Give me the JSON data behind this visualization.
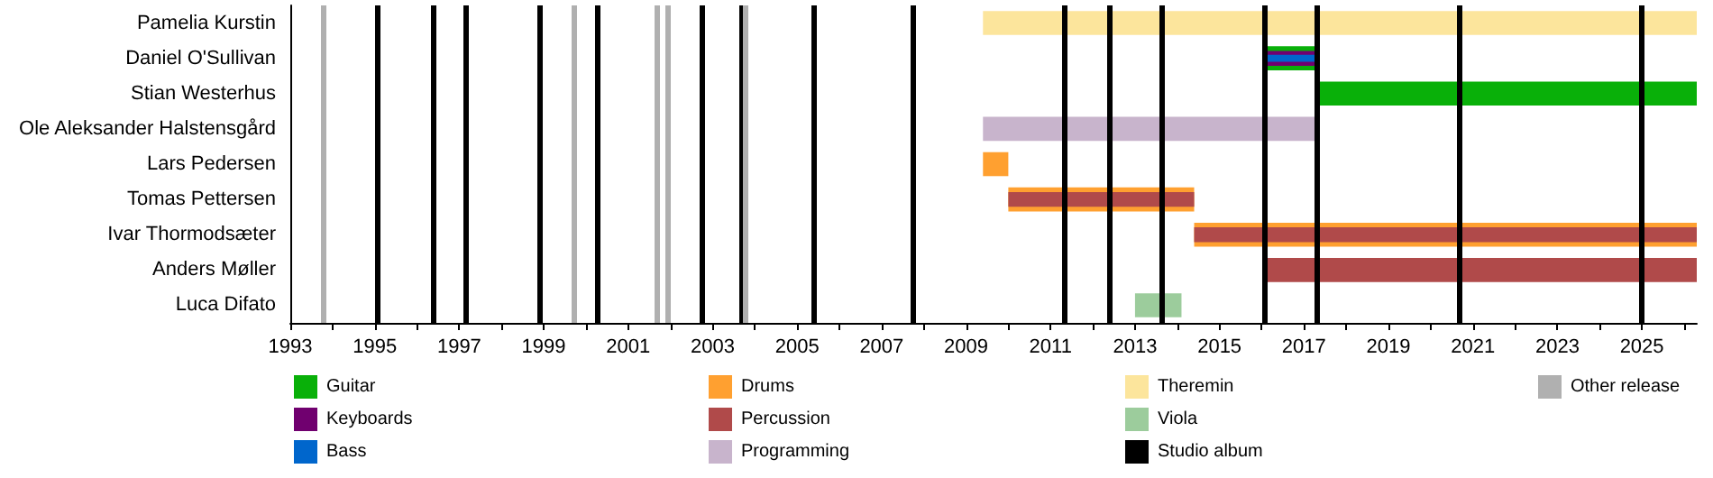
{
  "chart_data": {
    "type": "bar",
    "orientation": "horizontal",
    "legend": "bottom",
    "grid": false,
    "categories": [
      "Pamelia Kurstin",
      "Daniel O'Sullivan",
      "Stian Westerhus",
      "Ole Aleksander Halstensgård",
      "Lars Pedersen",
      "Tomas Pettersen",
      "Ivar Thormodsæter",
      "Anders Møller",
      "Luca Difato"
    ],
    "xlim": [
      1993,
      2026.3
    ],
    "xticks": [
      1993,
      {
        "value": 1994,
        "label": null
      },
      1995,
      {
        "value": 1996,
        "label": null
      },
      1997,
      {
        "value": 1998,
        "label": null
      },
      1999,
      {
        "value": 2000,
        "label": null
      },
      2001,
      {
        "value": 2002,
        "label": null
      },
      2003,
      {
        "value": 2004,
        "label": null
      },
      2005,
      {
        "value": 2006,
        "label": null
      },
      2007,
      {
        "value": 2008,
        "label": null
      },
      2009,
      {
        "value": 2010,
        "label": null
      },
      2011,
      {
        "value": 2012,
        "label": null
      },
      2013,
      {
        "value": 2014,
        "label": null
      },
      2015,
      {
        "value": 2016,
        "label": null
      },
      2017,
      {
        "value": 2018,
        "label": null
      },
      2019,
      {
        "value": 2020,
        "label": null
      },
      2021,
      {
        "value": 2022,
        "label": null
      },
      2023,
      {
        "value": 2024,
        "label": null
      },
      2025,
      {
        "value": 2026,
        "label": null
      }
    ],
    "series": [
      {
        "name": "Guitar",
        "color": "#09b009",
        "base": [
          null,
          2016.1,
          2017.3,
          null,
          null,
          null,
          null,
          null,
          null
        ],
        "values": [
          null,
          1.2,
          9.0,
          null,
          null,
          null,
          null,
          null,
          null
        ]
      },
      {
        "name": "Keyboards",
        "color": "#70006f",
        "base": [
          null,
          2016.1,
          null,
          null,
          null,
          null,
          null,
          null,
          null
        ],
        "values": [
          null,
          1.2,
          null,
          null,
          null,
          null,
          null,
          null,
          null
        ]
      },
      {
        "name": "Bass",
        "color": "#0066cc",
        "base": [
          null,
          2016.1,
          null,
          null,
          null,
          null,
          null,
          null,
          null
        ],
        "values": [
          null,
          1.2,
          null,
          null,
          null,
          null,
          null,
          null,
          null
        ]
      },
      {
        "name": "Drums",
        "color": "#ffa030",
        "base": [
          null,
          null,
          null,
          null,
          2009.4,
          2010.0,
          2014.4,
          null,
          null
        ],
        "values": [
          null,
          null,
          null,
          null,
          0.6,
          4.4,
          11.9,
          null,
          null
        ]
      },
      {
        "name": "Percussion",
        "color": "#b04a4a",
        "base": [
          null,
          null,
          null,
          null,
          null,
          2010.0,
          2014.4,
          2016.1,
          null
        ],
        "values": [
          null,
          null,
          null,
          null,
          null,
          4.4,
          11.9,
          10.2,
          null
        ]
      },
      {
        "name": "Programming",
        "color": "#c8b4cc",
        "base": [
          null,
          null,
          null,
          2009.4,
          null,
          null,
          null,
          null,
          null
        ],
        "values": [
          null,
          null,
          null,
          7.9,
          null,
          null,
          null,
          null,
          null
        ]
      },
      {
        "name": "Theremin",
        "color": "#fce59c",
        "base": [
          2009.4,
          null,
          null,
          null,
          null,
          null,
          null,
          null,
          null
        ],
        "values": [
          16.9,
          null,
          null,
          null,
          null,
          null,
          null,
          null,
          null
        ]
      },
      {
        "name": "Viola",
        "color": "#9ccc9c",
        "base": [
          null,
          null,
          null,
          null,
          null,
          null,
          null,
          null,
          2013.0
        ],
        "values": [
          null,
          null,
          null,
          null,
          null,
          null,
          null,
          null,
          1.1
        ]
      }
    ],
    "ref_lines": [
      {
        "axis": "x",
        "value": 1995.05,
        "label": "Studio album",
        "color": "#000000"
      },
      {
        "axis": "x",
        "value": 1996.37,
        "color": "#000000"
      },
      {
        "axis": "x",
        "value": 1997.14,
        "color": "#000000"
      },
      {
        "axis": "x",
        "value": 1998.89,
        "color": "#000000"
      },
      {
        "axis": "x",
        "value": 2000.25,
        "color": "#000000"
      },
      {
        "axis": "x",
        "value": 2002.73,
        "color": "#000000"
      },
      {
        "axis": "x",
        "value": 2003.67,
        "color": "#000000"
      },
      {
        "axis": "x",
        "value": 2005.41,
        "color": "#000000"
      },
      {
        "axis": "x",
        "value": 2007.76,
        "color": "#000000"
      },
      {
        "axis": "x",
        "value": 2011.34,
        "color": "#000000"
      },
      {
        "axis": "x",
        "value": 2012.41,
        "color": "#000000"
      },
      {
        "axis": "x",
        "value": 2013.61,
        "color": "#000000"
      },
      {
        "axis": "x",
        "value": 2016.08,
        "color": "#000000"
      },
      {
        "axis": "x",
        "value": 2017.32,
        "color": "#000000"
      },
      {
        "axis": "x",
        "value": 2020.69,
        "color": "#000000"
      },
      {
        "axis": "x",
        "value": 2025.0,
        "color": "#000000"
      },
      {
        "axis": "x",
        "value": 1993.77,
        "label": "Other release",
        "color": "#b0b0b0"
      },
      {
        "axis": "x",
        "value": 1999.7,
        "color": "#b0b0b0"
      },
      {
        "axis": "x",
        "value": 2001.66,
        "color": "#b0b0b0"
      },
      {
        "axis": "x",
        "value": 2001.92,
        "color": "#b0b0b0"
      },
      {
        "axis": "x",
        "value": 2003.79,
        "color": "#b0b0b0"
      }
    ]
  }
}
